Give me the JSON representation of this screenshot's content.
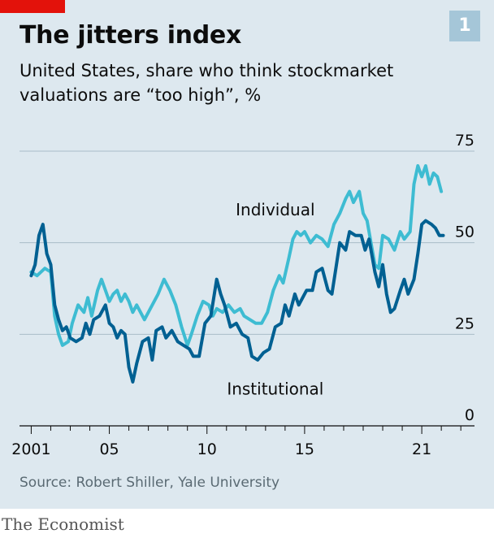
{
  "header": {
    "title": "The jitters index",
    "subtitle": "United States, share who think stockmarket valuations are “too high”, %",
    "badge": "1"
  },
  "footer": {
    "source": "Source: Robert Shiller, Yale University",
    "brand": "The Economist"
  },
  "colors": {
    "background": "#dde8ef",
    "brand_red": "#e3120b",
    "individual": "#3ebcd2",
    "institutional": "#006092",
    "grid": "#a9bcc8"
  },
  "chart_data": {
    "type": "line",
    "title": "The jitters index",
    "xlabel": "",
    "ylabel": "%",
    "xlim": [
      2000.4,
      2023.7
    ],
    "ylim": [
      0,
      75
    ],
    "y_ticks": [
      0,
      25,
      50,
      75
    ],
    "y_tick_labels": [
      "0",
      "25",
      "50",
      "75"
    ],
    "x_ticks": [
      2001,
      2005,
      2010,
      2015,
      2021
    ],
    "x_tick_labels": [
      "2001",
      "05",
      "10",
      "15",
      "21"
    ],
    "grid": true,
    "y_axis_side": "right",
    "series": [
      {
        "name": "Individual",
        "color": "#3ebcd2",
        "points": [
          [
            2001.0,
            42
          ],
          [
            2001.3,
            41
          ],
          [
            2001.7,
            43
          ],
          [
            2002.0,
            42
          ],
          [
            2002.2,
            30
          ],
          [
            2002.4,
            25
          ],
          [
            2002.6,
            22
          ],
          [
            2002.9,
            23
          ],
          [
            2003.1,
            28
          ],
          [
            2003.4,
            33
          ],
          [
            2003.7,
            31
          ],
          [
            2003.9,
            35
          ],
          [
            2004.1,
            30
          ],
          [
            2004.4,
            37
          ],
          [
            2004.6,
            40
          ],
          [
            2004.8,
            37
          ],
          [
            2005.0,
            34
          ],
          [
            2005.2,
            36
          ],
          [
            2005.4,
            37
          ],
          [
            2005.6,
            34
          ],
          [
            2005.8,
            36
          ],
          [
            2006.0,
            34
          ],
          [
            2006.2,
            31
          ],
          [
            2006.4,
            33
          ],
          [
            2006.6,
            31
          ],
          [
            2006.8,
            29
          ],
          [
            2007.0,
            31
          ],
          [
            2007.2,
            33
          ],
          [
            2007.5,
            36
          ],
          [
            2007.8,
            40
          ],
          [
            2008.1,
            37
          ],
          [
            2008.4,
            33
          ],
          [
            2008.7,
            27
          ],
          [
            2009.0,
            22
          ],
          [
            2009.2,
            25
          ],
          [
            2009.5,
            30
          ],
          [
            2009.8,
            34
          ],
          [
            2010.1,
            33
          ],
          [
            2010.3,
            30
          ],
          [
            2010.5,
            32
          ],
          [
            2010.8,
            31
          ],
          [
            2011.1,
            33
          ],
          [
            2011.4,
            31
          ],
          [
            2011.7,
            32
          ],
          [
            2011.9,
            30
          ],
          [
            2012.2,
            29
          ],
          [
            2012.5,
            28
          ],
          [
            2012.8,
            28
          ],
          [
            2013.1,
            31
          ],
          [
            2013.4,
            37
          ],
          [
            2013.7,
            41
          ],
          [
            2013.9,
            39
          ],
          [
            2014.2,
            46
          ],
          [
            2014.4,
            51
          ],
          [
            2014.6,
            53
          ],
          [
            2014.8,
            52
          ],
          [
            2015.0,
            53
          ],
          [
            2015.3,
            50
          ],
          [
            2015.6,
            52
          ],
          [
            2015.9,
            51
          ],
          [
            2016.2,
            49
          ],
          [
            2016.5,
            55
          ],
          [
            2016.8,
            58
          ],
          [
            2017.1,
            62
          ],
          [
            2017.3,
            64
          ],
          [
            2017.5,
            61
          ],
          [
            2017.8,
            64
          ],
          [
            2018.0,
            58
          ],
          [
            2018.2,
            56
          ],
          [
            2018.4,
            50
          ],
          [
            2018.6,
            44
          ],
          [
            2018.8,
            43
          ],
          [
            2019.0,
            52
          ],
          [
            2019.3,
            51
          ],
          [
            2019.6,
            48
          ],
          [
            2019.9,
            53
          ],
          [
            2020.1,
            51
          ],
          [
            2020.4,
            53
          ],
          [
            2020.6,
            66
          ],
          [
            2020.8,
            71
          ],
          [
            2021.0,
            68
          ],
          [
            2021.2,
            71
          ],
          [
            2021.4,
            66
          ],
          [
            2021.6,
            69
          ],
          [
            2021.8,
            68
          ],
          [
            2022.0,
            64
          ]
        ]
      },
      {
        "name": "Institutional",
        "color": "#006092",
        "points": [
          [
            2001.0,
            41
          ],
          [
            2001.2,
            44
          ],
          [
            2001.4,
            52
          ],
          [
            2001.6,
            55
          ],
          [
            2001.8,
            47
          ],
          [
            2002.0,
            44
          ],
          [
            2002.2,
            33
          ],
          [
            2002.4,
            29
          ],
          [
            2002.6,
            26
          ],
          [
            2002.8,
            27
          ],
          [
            2003.0,
            24
          ],
          [
            2003.3,
            23
          ],
          [
            2003.6,
            24
          ],
          [
            2003.8,
            28
          ],
          [
            2004.0,
            25
          ],
          [
            2004.2,
            29
          ],
          [
            2004.5,
            30
          ],
          [
            2004.8,
            33
          ],
          [
            2005.0,
            28
          ],
          [
            2005.2,
            27
          ],
          [
            2005.4,
            24
          ],
          [
            2005.6,
            26
          ],
          [
            2005.8,
            25
          ],
          [
            2006.0,
            16
          ],
          [
            2006.2,
            12
          ],
          [
            2006.4,
            17
          ],
          [
            2006.7,
            23
          ],
          [
            2007.0,
            24
          ],
          [
            2007.2,
            18
          ],
          [
            2007.4,
            26
          ],
          [
            2007.7,
            27
          ],
          [
            2007.9,
            24
          ],
          [
            2008.2,
            26
          ],
          [
            2008.5,
            23
          ],
          [
            2008.8,
            22
          ],
          [
            2009.1,
            21
          ],
          [
            2009.3,
            19
          ],
          [
            2009.6,
            19
          ],
          [
            2009.9,
            28
          ],
          [
            2010.2,
            30
          ],
          [
            2010.5,
            40
          ],
          [
            2010.7,
            36
          ],
          [
            2010.9,
            33
          ],
          [
            2011.2,
            27
          ],
          [
            2011.5,
            28
          ],
          [
            2011.8,
            25
          ],
          [
            2012.1,
            24
          ],
          [
            2012.3,
            19
          ],
          [
            2012.6,
            18
          ],
          [
            2012.9,
            20
          ],
          [
            2013.2,
            21
          ],
          [
            2013.5,
            27
          ],
          [
            2013.8,
            28
          ],
          [
            2014.0,
            33
          ],
          [
            2014.2,
            30
          ],
          [
            2014.5,
            36
          ],
          [
            2014.7,
            33
          ],
          [
            2014.9,
            35
          ],
          [
            2015.1,
            37
          ],
          [
            2015.4,
            37
          ],
          [
            2015.6,
            42
          ],
          [
            2015.9,
            43
          ],
          [
            2016.2,
            37
          ],
          [
            2016.4,
            36
          ],
          [
            2016.6,
            43
          ],
          [
            2016.8,
            50
          ],
          [
            2017.1,
            48
          ],
          [
            2017.3,
            53
          ],
          [
            2017.6,
            52
          ],
          [
            2017.9,
            52
          ],
          [
            2018.1,
            48
          ],
          [
            2018.3,
            51
          ],
          [
            2018.6,
            42
          ],
          [
            2018.8,
            38
          ],
          [
            2019.0,
            44
          ],
          [
            2019.2,
            36
          ],
          [
            2019.4,
            31
          ],
          [
            2019.6,
            32
          ],
          [
            2019.9,
            37
          ],
          [
            2020.1,
            40
          ],
          [
            2020.3,
            36
          ],
          [
            2020.6,
            40
          ],
          [
            2020.8,
            47
          ],
          [
            2021.0,
            55
          ],
          [
            2021.2,
            56
          ],
          [
            2021.5,
            55
          ],
          [
            2021.7,
            54
          ],
          [
            2021.9,
            52
          ],
          [
            2022.1,
            52
          ]
        ]
      }
    ],
    "annotations": [
      {
        "text": "Individual",
        "x": 2013.5,
        "y": 57.5
      },
      {
        "text": "Institutional",
        "x": 2013.5,
        "y": 8.5
      }
    ]
  }
}
